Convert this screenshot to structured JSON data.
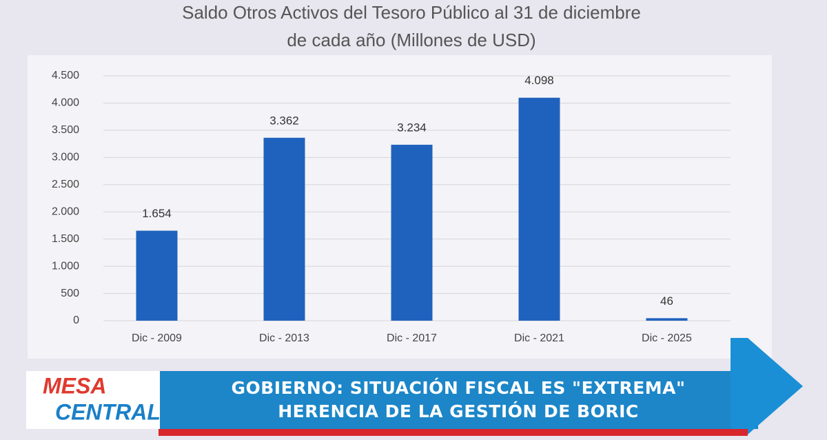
{
  "chart_data": {
    "type": "bar",
    "title": "Saldo Otros Activos del Tesoro Público al 31 de diciembre",
    "subtitle": "de cada año (Millones de USD)",
    "categories": [
      "Dic - 2009",
      "Dic - 2013",
      "Dic - 2017",
      "Dic - 2021",
      "Dic - 2025"
    ],
    "values": [
      1654,
      3362,
      3234,
      4098,
      46
    ],
    "value_labels": [
      "1.654",
      "3.362",
      "3.234",
      "4.098",
      "46"
    ],
    "color": "#1f62bd",
    "ylim": [
      0,
      4500
    ],
    "yticks": [
      0,
      500,
      {
        "value": 1000,
        "label": "1.000"
      },
      {
        "value": 1500,
        "label": "1.500"
      },
      {
        "value": 2000,
        "label": "2.000"
      },
      {
        "value": 2500,
        "label": "2.500"
      },
      {
        "value": 3000,
        "label": "3.000"
      },
      {
        "value": 3500,
        "label": "3.500"
      },
      {
        "value": 4000,
        "label": "4.000"
      },
      {
        "value": 4500,
        "label": "4.500"
      }
    ],
    "grid": true
  },
  "banner": {
    "logo_top": "MESA",
    "logo_bottom": "CENTRAL",
    "headline": [
      "GOBIERNO: SITUACIÓN FISCAL ES \"EXTREMA\"",
      "HERENCIA DE LA GESTIÓN DE BORIC"
    ]
  }
}
